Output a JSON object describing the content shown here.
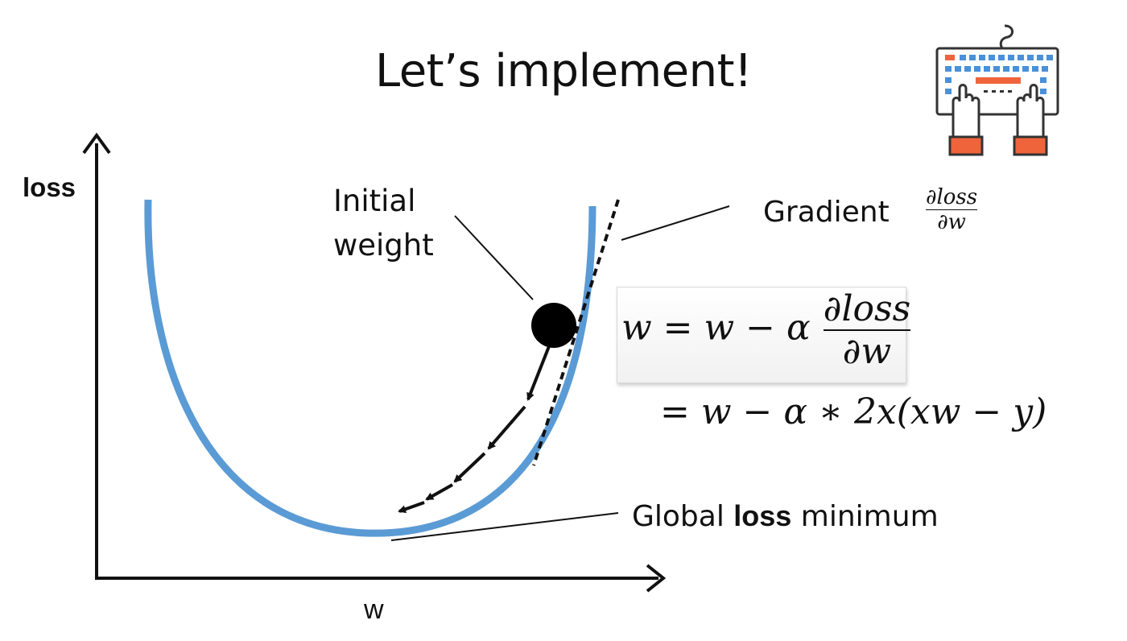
{
  "slide": {
    "title": "Let’s implement!"
  },
  "axes": {
    "y_label": "loss",
    "x_label": "w"
  },
  "annotations": {
    "initial_weight_line1": "Initial",
    "initial_weight_line2": "weight",
    "gradient_label": "Gradient",
    "global_min_pre": "Global",
    "global_min_bold": "loss",
    "global_min_post": "minimum"
  },
  "formulas": {
    "gradient_num": "∂loss",
    "gradient_den": "∂w",
    "update_lhs": "w = w − α",
    "update_num": "∂loss",
    "update_den": "∂w",
    "update_expanded": "= w − α ∗ 2x(xw − y)"
  },
  "colors": {
    "curve": "#5b9bd5",
    "keyboard_blue": "#4a90d9",
    "keyboard_orange": "#f0643c",
    "text": "#111111"
  },
  "icons": {
    "keyboard": "keyboard-typing-hands-icon"
  }
}
